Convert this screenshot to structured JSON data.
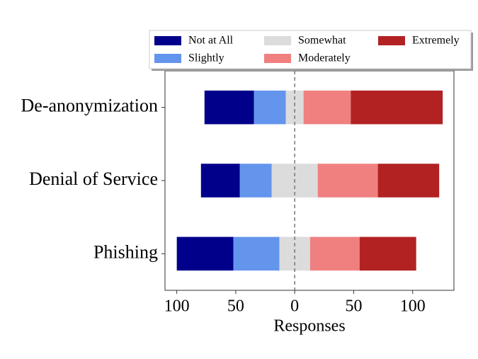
{
  "chart_data": {
    "type": "diverging_bar",
    "xlabel": "Responses",
    "categories": [
      "De-anonymization",
      "Denial of Service",
      "Phishing"
    ],
    "series": [
      {
        "name": "Not at All",
        "color": "#00008b",
        "values": [
          42,
          33,
          48
        ]
      },
      {
        "name": "Slightly",
        "color": "#6495ed",
        "values": [
          27,
          27,
          39
        ]
      },
      {
        "name": "Somewhat",
        "color": "#dcdcdc",
        "values": [
          15,
          39,
          26
        ]
      },
      {
        "name": "Moderately",
        "color": "#f08080",
        "values": [
          40,
          51,
          42
        ]
      },
      {
        "name": "Extremely",
        "color": "#b22222",
        "values": [
          78,
          52,
          48
        ]
      }
    ],
    "neutral_series": 2,
    "xlim": [
      -110,
      135
    ],
    "xticks": [
      {
        "value": -100,
        "label": "100"
      },
      {
        "value": -50,
        "label": "50"
      },
      0,
      50,
      100
    ],
    "zero_line": true,
    "legend": "upper center"
  }
}
